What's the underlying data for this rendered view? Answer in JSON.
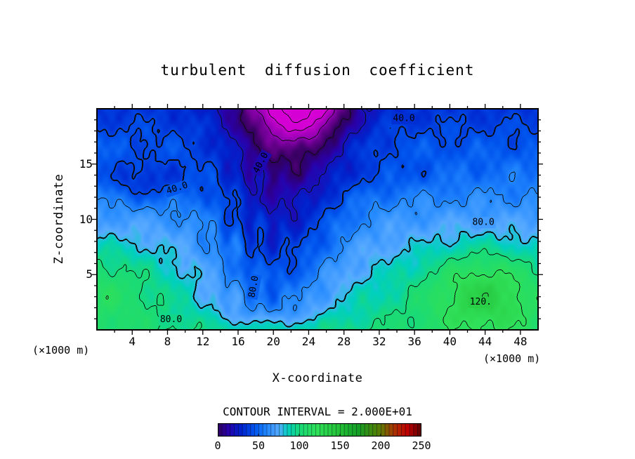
{
  "figure": {
    "contour_interval_text": "CONTOUR INTERVAL = 2.000E+01",
    "unit_left": "(×1000 m)",
    "unit_right": "(×1000 m)"
  },
  "chart_data": {
    "type": "heatmap",
    "title": "turbulent diffusion coefficient",
    "xlabel": "X-coordinate",
    "ylabel": "Z-coordinate",
    "x_range": [
      0,
      50
    ],
    "z_range": [
      0,
      20
    ],
    "x_ticks": [
      4,
      8,
      12,
      16,
      20,
      24,
      28,
      32,
      36,
      40,
      44,
      48
    ],
    "x_minor_step": 2,
    "z_ticks": [
      5,
      10,
      15
    ],
    "z_minor_step": 1,
    "contour_interval": 20,
    "contour_levels_labeled": [
      40,
      80,
      120
    ],
    "thick_levels": [
      40,
      80
    ],
    "annotations": [
      {
        "text": "40.0",
        "x": 34.8,
        "z": 19.1,
        "rot": 0
      },
      {
        "text": "40.0",
        "x": 18.6,
        "z": 15.1,
        "rot": -62
      },
      {
        "text": "40.0",
        "x": 9.1,
        "z": 12.8,
        "rot": -18
      },
      {
        "text": "80.0",
        "x": 43.8,
        "z": 9.7,
        "rot": 0
      },
      {
        "text": "80.0",
        "x": 17.8,
        "z": 3.9,
        "rot": -80
      },
      {
        "text": "80.0",
        "x": 8.4,
        "z": 0.9,
        "rot": 0
      },
      {
        "text": "120.",
        "x": 43.5,
        "z": 2.5,
        "rot": 0
      }
    ],
    "colorbar": {
      "min": 0,
      "max": 250,
      "ticks": [
        0,
        50,
        100,
        150,
        200,
        250
      ],
      "segments": 50
    },
    "colormap_stops": [
      [
        -45,
        "#d400d4"
      ],
      [
        -20,
        "#9000b0"
      ],
      [
        0,
        "#30005c"
      ],
      [
        12,
        "#2a00a8"
      ],
      [
        28,
        "#0022cc"
      ],
      [
        45,
        "#0055ee"
      ],
      [
        60,
        "#2288ff"
      ],
      [
        75,
        "#58aaff"
      ],
      [
        85,
        "#00cfc0"
      ],
      [
        100,
        "#18da78"
      ],
      [
        122,
        "#2fe058"
      ],
      [
        148,
        "#24c238"
      ],
      [
        172,
        "#14a026"
      ],
      [
        200,
        "#5d7a00"
      ],
      [
        215,
        "#a83800"
      ],
      [
        233,
        "#c00000"
      ],
      [
        250,
        "#5a0000"
      ]
    ],
    "field_model": {
      "base": {
        "v0": 100,
        "slope": 3.3
      },
      "blobs": [
        {
          "x": 44,
          "z": 3.5,
          "sx": 7,
          "sz": 4,
          "a": 45
        },
        {
          "x": 0,
          "z": 4,
          "sx": 7,
          "sz": 4,
          "a": 25
        },
        {
          "x": 5.5,
          "z": 13.5,
          "sx": 5,
          "sz": 2,
          "a": -22
        },
        {
          "x": 23,
          "z": 20.5,
          "sx": 4.5,
          "sz": 3,
          "a": -60
        },
        {
          "x": 33,
          "z": 14,
          "sx": 8,
          "sz": 1.8,
          "a": -8
        }
      ],
      "trench": {
        "c0": 19.5,
        "cdrift": 0.12,
        "w": 7.2,
        "d0": 35,
        "dslope": 0.8,
        "ground_fade": 0.6,
        "ground_scale": 1.2
      },
      "noise": [
        {
          "ax": 0.9,
          "az": 1.4,
          "px": 0,
          "pz": 2,
          "a": 4.5
        },
        {
          "ax": 2.2,
          "az": 1.1,
          "px": 1.3,
          "pz": 0,
          "a": 3.0
        },
        {
          "ax": 4.1,
          "az": 2.9,
          "px": 0.7,
          "pz": 1.1,
          "a": 2.2
        }
      ],
      "striation": {
        "a": 7,
        "kx": 2.4,
        "phase": 1.0,
        "cx": 17.5,
        "sx": 5.5,
        "cz": 9,
        "sz": 8
      }
    }
  }
}
